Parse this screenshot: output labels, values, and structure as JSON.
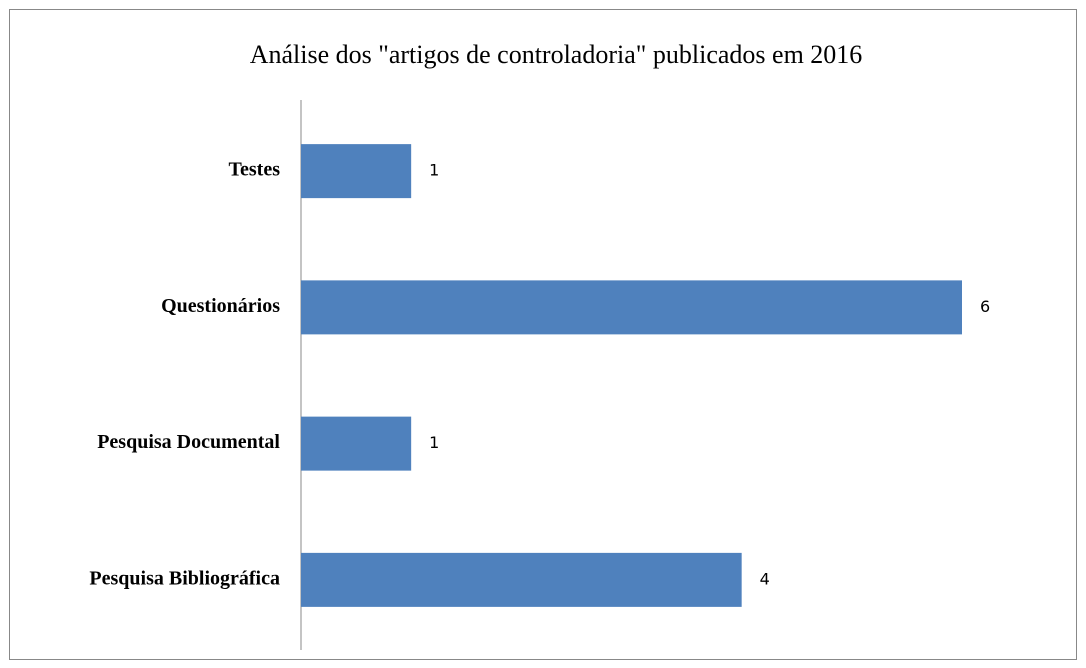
{
  "chart_data": {
    "type": "bar",
    "orientation": "horizontal",
    "title": "Análise dos \"artigos de controladoria\" publicados em 2016",
    "categories": [
      "Testes",
      "Questionários",
      "Pesquisa Documental",
      "Pesquisa Bibliográfica"
    ],
    "values": [
      1,
      6,
      1,
      4
    ],
    "color": "#4f81bd"
  }
}
